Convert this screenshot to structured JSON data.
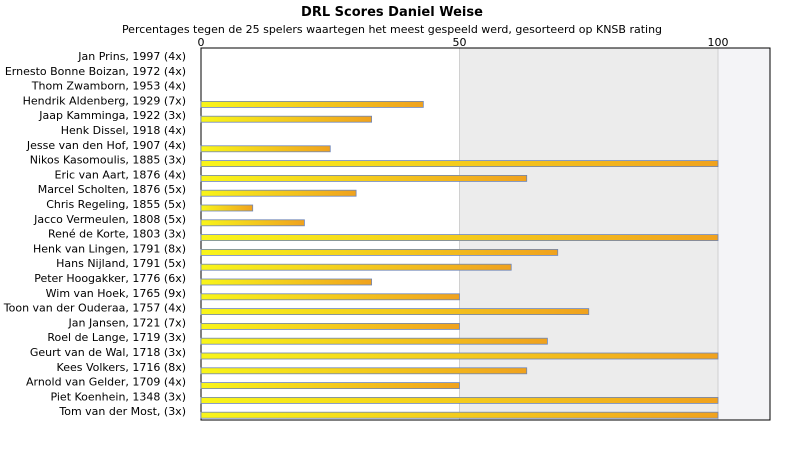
{
  "chart_data": {
    "type": "bar",
    "orientation": "horizontal",
    "title": "DRL Scores Daniel Weise",
    "subtitle": "Percentages tegen de 25 spelers waartegen het meest gespeeld werd, gesorteerd op KNSB rating",
    "xlim": [
      0,
      110
    ],
    "xticks": [
      0,
      50,
      100
    ],
    "categories": [
      "Jan Prins, 1997 (4x)",
      "Ernesto Bonne Boizan, 1972 (4x)",
      "Thom Zwamborn, 1953 (4x)",
      "Hendrik Aldenberg, 1929 (7x)",
      "Jaap Kamminga, 1922 (3x)",
      "Henk Dissel, 1918 (4x)",
      "Jesse van den Hof, 1907 (4x)",
      "Nikos Kasomoulis, 1885 (3x)",
      "Eric van Aart, 1876 (4x)",
      "Marcel Scholten, 1876 (5x)",
      "Chris Regeling, 1855 (5x)",
      "Jacco Vermeulen, 1808 (5x)",
      "René de Korte, 1803 (3x)",
      "Henk van Lingen, 1791 (8x)",
      "Hans Nijland, 1791 (5x)",
      "Peter Hoogakker, 1776 (6x)",
      "Wim van Hoek, 1765 (9x)",
      "Toon van der Ouderaa, 1757 (4x)",
      "Jan Jansen, 1721 (7x)",
      "Roel de Lange, 1719 (3x)",
      "Geurt van de Wal, 1718 (3x)",
      "Kees Volkers, 1716 (8x)",
      "Arnold van Gelder, 1709 (4x)",
      "Piet Koenhein, 1348 (3x)",
      "Tom van der Most,  (3x)"
    ],
    "values": [
      0,
      0,
      0,
      43,
      33,
      0,
      25,
      100,
      63,
      30,
      10,
      20,
      100,
      69,
      60,
      33,
      50,
      75,
      50,
      67,
      100,
      63,
      50,
      100,
      100
    ]
  },
  "colors": {
    "bar_left": "#f8f51a",
    "bar_right": "#f0a21e",
    "bar_edge": "#6e86b8",
    "band_light": "#ececec",
    "band_dark": "#f4f4f7",
    "grid": "#d0d0d0"
  }
}
